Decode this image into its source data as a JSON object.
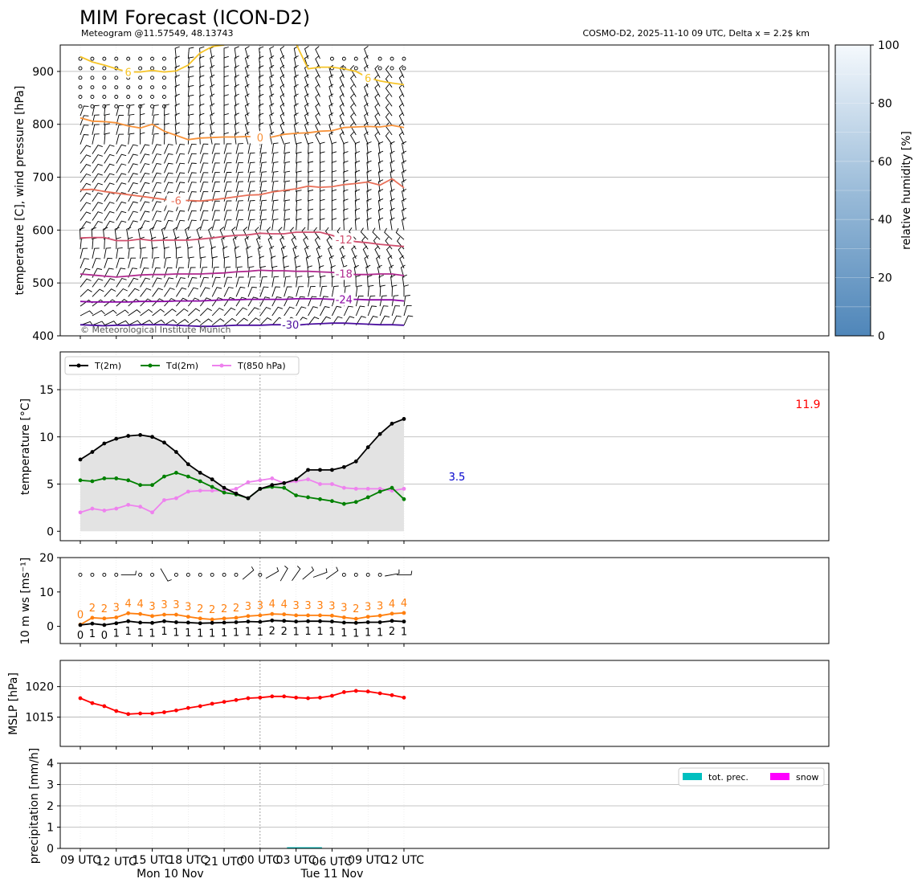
{
  "title": "MIM Forecast (ICON-D2)",
  "subtitle_left": "Meteogram @11.57549, 48.13743",
  "subtitle_right": "COSMO-D2, 2025-11-10 09 UTC, Delta x = 2.2$ km",
  "copyright": "© Meteorological Institute Munich",
  "x_ticks": [
    "09 UTC",
    "12 UTC",
    "15 UTC",
    "18 UTC",
    "21 UTC",
    "00 UTC",
    "03 UTC",
    "06 UTC",
    "09 UTC",
    "12 UTC"
  ],
  "date_labels": [
    "Mon 10 Nov",
    "Tue 11 Nov"
  ],
  "colors": {
    "t2m": "#000000",
    "td2m": "#008000",
    "t850": "#ee82ee",
    "ws_max": "#ff7f0e",
    "ws_mean": "#000000",
    "mslp": "#ff0000",
    "tot_prec": "#00bfbf",
    "snow": "#ff00ff",
    "max_label": "#ff0000",
    "min_label": "#0000cd"
  },
  "chart_data": [
    {
      "type": "contour",
      "name": "upper-air",
      "ylabel": "temperature [C], wind pressure [hPa]",
      "y_ticks": [
        "400",
        "500",
        "600",
        "700",
        "800",
        "900"
      ],
      "ylim": [
        950,
        400
      ],
      "colorbar_label": "relative humidity [%]",
      "colorbar_ticks": [
        "0",
        "20",
        "40",
        "60",
        "80",
        "100"
      ],
      "contour_labels": [
        "-30",
        "-24",
        "-18",
        "-12",
        "-6",
        "0",
        "6",
        "6"
      ],
      "isotherms": [
        {
          "label": "-30",
          "color": "#4b0f9e",
          "p": [
            421,
            420,
            419,
            420,
            420,
            421,
            421,
            421,
            420,
            419,
            418,
            418,
            419,
            420,
            420,
            420,
            421,
            421,
            420,
            422,
            423,
            424,
            424,
            423,
            422,
            421,
            421,
            420
          ]
        },
        {
          "label": "-24",
          "color": "#8b0aa5",
          "p": [
            465,
            464,
            464,
            464,
            464,
            465,
            465,
            465,
            466,
            466,
            466,
            467,
            468,
            468,
            469,
            469,
            469,
            469,
            470,
            470,
            470,
            469,
            469,
            469,
            468,
            468,
            468,
            466
          ]
        },
        {
          "label": "-18",
          "color": "#b02a8f",
          "p": [
            517,
            515,
            513,
            511,
            513,
            515,
            516,
            516,
            517,
            517,
            517,
            518,
            519,
            521,
            522,
            524,
            523,
            523,
            522,
            522,
            521,
            520,
            518,
            516,
            516,
            517,
            517,
            514
          ]
        },
        {
          "label": "-12",
          "color": "#d04f6e",
          "p": [
            585,
            586,
            586,
            580,
            580,
            583,
            580,
            581,
            581,
            581,
            583,
            585,
            588,
            590,
            591,
            594,
            593,
            593,
            596,
            596,
            596,
            590,
            582,
            578,
            576,
            573,
            571,
            569
          ]
        },
        {
          "label": "-6",
          "color": "#e87059",
          "p": [
            676,
            677,
            673,
            670,
            667,
            664,
            661,
            658,
            656,
            656,
            655,
            657,
            660,
            663,
            666,
            667,
            672,
            675,
            678,
            683,
            681,
            682,
            686,
            688,
            691,
            685,
            697,
            680
          ]
        },
        {
          "label": "0",
          "color": "#f7923a",
          "p": [
            812,
            806,
            805,
            803,
            797,
            793,
            800,
            787,
            779,
            771,
            774,
            775,
            776,
            776,
            777,
            775,
            776,
            781,
            783,
            784,
            787,
            788,
            794,
            795,
            796,
            795,
            798,
            794
          ]
        },
        {
          "label": "6",
          "color": "#f6c428",
          "p": [
            928,
            918,
            912,
            905,
            899,
            899,
            902,
            899,
            901,
            912,
            935,
            947,
            950,
            null,
            null,
            null,
            null,
            null,
            952,
            905,
            908,
            908,
            905,
            900,
            888,
            882,
            878,
            875
          ]
        }
      ]
    },
    {
      "type": "line",
      "name": "temperature",
      "ylabel": "temperature [°C]",
      "y_ticks": [
        "0",
        "5",
        "10",
        "15"
      ],
      "ylim": [
        -1,
        19
      ],
      "annotation_max": "11.9",
      "annotation_min": "3.5",
      "series": [
        {
          "name": "T(2m)",
          "values": [
            7.6,
            8.4,
            9.3,
            9.8,
            10.1,
            10.2,
            10.0,
            9.4,
            8.4,
            7.1,
            6.2,
            5.5,
            4.6,
            4.0,
            3.5,
            4.5,
            4.9,
            5.1,
            5.5,
            6.5,
            6.5,
            6.5,
            6.8,
            7.4,
            8.9,
            10.3,
            11.4,
            11.9
          ]
        },
        {
          "name": "Td(2m)",
          "values": [
            5.4,
            5.3,
            5.6,
            5.6,
            5.4,
            4.9,
            4.9,
            5.8,
            6.2,
            5.8,
            5.3,
            4.7,
            4.1,
            3.9,
            3.5,
            4.5,
            4.7,
            4.6,
            3.8,
            3.6,
            3.4,
            3.2,
            2.9,
            3.1,
            3.6,
            4.2,
            4.6,
            3.4
          ]
        },
        {
          "name": "T(850 hPa)",
          "values": [
            2.0,
            2.4,
            2.2,
            2.4,
            2.8,
            2.6,
            2.0,
            3.3,
            3.5,
            4.2,
            4.3,
            4.3,
            4.3,
            4.5,
            5.2,
            5.4,
            5.6,
            5.1,
            5.3,
            5.5,
            5.0,
            5.0,
            4.6,
            4.5,
            4.5,
            4.5,
            4.3,
            4.5
          ]
        }
      ]
    },
    {
      "type": "line",
      "name": "wind",
      "ylabel": "10 m ws [ms⁻¹]",
      "y_ticks": [
        "0",
        "10",
        "20"
      ],
      "ylim": [
        -5,
        20
      ],
      "series": [
        {
          "name": "gust",
          "values": [
            0.5,
            2.5,
            2.3,
            2.6,
            3.8,
            3.6,
            3.0,
            3.4,
            3.4,
            2.8,
            2.3,
            2.0,
            2.3,
            2.5,
            3.0,
            3.2,
            3.6,
            3.5,
            3.2,
            3.2,
            3.2,
            3.1,
            2.6,
            2.2,
            2.8,
            3.1,
            3.7,
            3.9
          ],
          "labels": [
            "0",
            "2",
            "2",
            "3",
            "4",
            "4",
            "3",
            "3",
            "3",
            "3",
            "2",
            "2",
            "2",
            "2",
            "3",
            "3",
            "4",
            "4",
            "3",
            "3",
            "3",
            "3",
            "3",
            "2",
            "3",
            "3",
            "4",
            "4"
          ]
        },
        {
          "name": "mean",
          "values": [
            0.4,
            0.8,
            0.4,
            0.9,
            1.5,
            1.1,
            1.0,
            1.5,
            1.2,
            1.1,
            0.9,
            1.0,
            1.1,
            1.2,
            1.4,
            1.3,
            1.7,
            1.6,
            1.4,
            1.5,
            1.5,
            1.4,
            1.1,
            1.0,
            1.2,
            1.2,
            1.6,
            1.4
          ],
          "labels": [
            "0",
            "1",
            "0",
            "1",
            "1",
            "1",
            "1",
            "1",
            "1",
            "1",
            "1",
            "1",
            "1",
            "1",
            "1",
            "1",
            "2",
            "2",
            "1",
            "1",
            "1",
            "1",
            "1",
            "1",
            "1",
            "1",
            "2",
            "1"
          ]
        }
      ]
    },
    {
      "type": "line",
      "name": "mslp",
      "ylabel": "MSLP [hPa]",
      "y_ticks": [
        "1015",
        "1020"
      ],
      "ylim": [
        1010.2,
        1024.3
      ],
      "series": [
        {
          "name": "MSLP",
          "values": [
            1018.1,
            1017.3,
            1016.8,
            1016.0,
            1015.5,
            1015.6,
            1015.6,
            1015.8,
            1016.1,
            1016.5,
            1016.8,
            1017.2,
            1017.5,
            1017.8,
            1018.1,
            1018.2,
            1018.4,
            1018.4,
            1018.2,
            1018.1,
            1018.2,
            1018.5,
            1019.1,
            1019.3,
            1019.2,
            1018.9,
            1018.6,
            1018.2
          ]
        }
      ]
    },
    {
      "type": "bar",
      "name": "precipitation",
      "ylabel": "precipitation [mm/h]",
      "y_ticks": [
        "0",
        "1",
        "2",
        "3",
        "4"
      ],
      "ylim": [
        0,
        4
      ],
      "series": [
        {
          "name": "tot. prec.",
          "values": [
            0,
            0,
            0,
            0,
            0,
            0,
            0,
            0,
            0,
            0,
            0,
            0,
            0,
            0,
            0,
            0,
            0,
            0,
            0.02,
            0.03,
            0,
            0,
            0,
            0,
            0,
            0,
            0,
            0
          ]
        },
        {
          "name": "snow",
          "values": [
            0,
            0,
            0,
            0,
            0,
            0,
            0,
            0,
            0,
            0,
            0,
            0,
            0,
            0,
            0,
            0,
            0,
            0,
            0,
            0,
            0,
            0,
            0,
            0,
            0,
            0,
            0,
            0
          ]
        }
      ]
    }
  ]
}
